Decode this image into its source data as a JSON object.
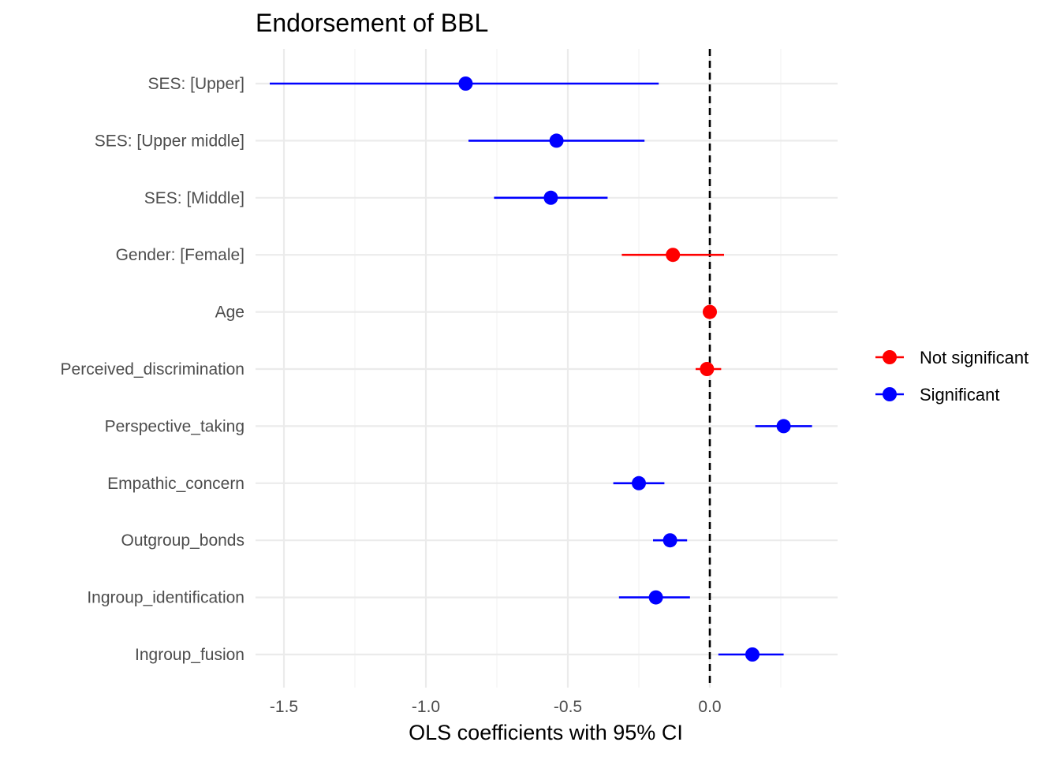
{
  "chart_data": {
    "type": "scatter",
    "title": "Endorsement of BBL",
    "xlabel": "OLS coefficients with 95% CI",
    "ylabel": "",
    "xlim": [
      -1.6,
      0.45
    ],
    "x_ticks": [
      -1.5,
      -1.0,
      -0.5,
      0.0
    ],
    "x_tick_labels": [
      "-1.5",
      "-1.0",
      "-0.5",
      "0.0"
    ],
    "reference_line": 0.0,
    "grid": true,
    "legend_position": "right",
    "legend": [
      {
        "label": "Not significant",
        "color": "#ff0000"
      },
      {
        "label": "Significant",
        "color": "#0000ff"
      }
    ],
    "points": [
      {
        "term": "SES:  [Upper]",
        "estimate": -0.86,
        "low": -1.55,
        "high": -0.18,
        "significant": true
      },
      {
        "term": "SES:  [Upper middle]",
        "estimate": -0.54,
        "low": -0.85,
        "high": -0.23,
        "significant": true
      },
      {
        "term": "SES:  [Middle]",
        "estimate": -0.56,
        "low": -0.76,
        "high": -0.36,
        "significant": true
      },
      {
        "term": "Gender:  [Female]",
        "estimate": -0.13,
        "low": -0.31,
        "high": 0.05,
        "significant": false
      },
      {
        "term": "Age",
        "estimate": 0.0,
        "low": -0.01,
        "high": 0.01,
        "significant": false
      },
      {
        "term": "Perceived_discrimination",
        "estimate": -0.01,
        "low": -0.05,
        "high": 0.04,
        "significant": false
      },
      {
        "term": "Perspective_taking",
        "estimate": 0.26,
        "low": 0.16,
        "high": 0.36,
        "significant": true
      },
      {
        "term": "Empathic_concern",
        "estimate": -0.25,
        "low": -0.34,
        "high": -0.16,
        "significant": true
      },
      {
        "term": "Outgroup_bonds",
        "estimate": -0.14,
        "low": -0.2,
        "high": -0.08,
        "significant": true
      },
      {
        "term": "Ingroup_identification",
        "estimate": -0.19,
        "low": -0.32,
        "high": -0.07,
        "significant": true
      },
      {
        "term": "Ingroup_fusion",
        "estimate": 0.15,
        "low": 0.03,
        "high": 0.26,
        "significant": true
      }
    ]
  }
}
